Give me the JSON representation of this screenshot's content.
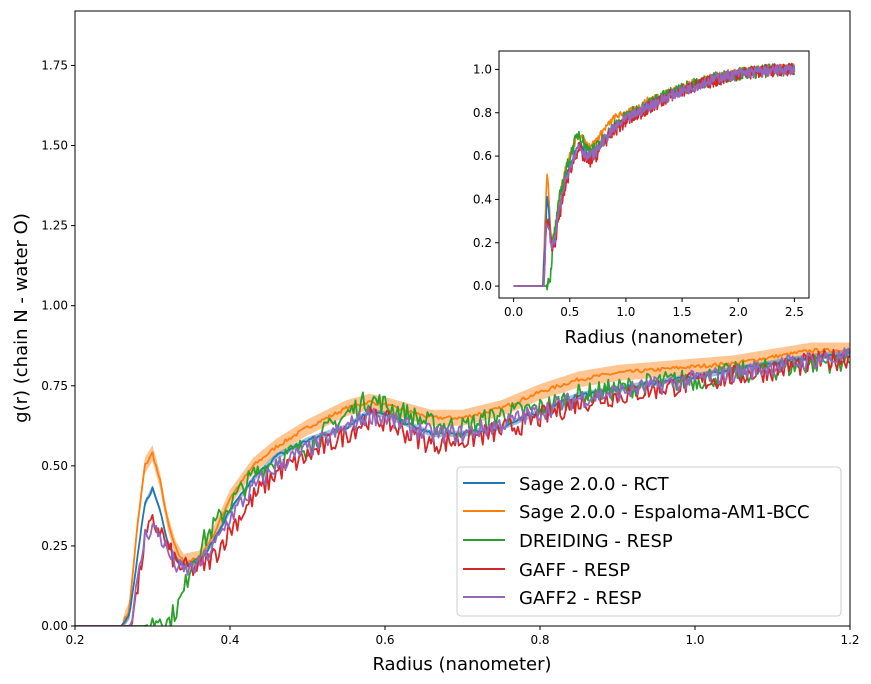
{
  "chart_data": [
    {
      "type": "line",
      "xlabel": "Radius (nanometer)",
      "ylabel": "g(r) (chain N - water O)",
      "xlim": [
        0.2,
        1.2
      ],
      "ylim": [
        0.0,
        1.92
      ],
      "xticks": [
        "0.2",
        "0.4",
        "0.6",
        "0.8",
        "1.0",
        "1.2"
      ],
      "xtick_values": [
        0.2,
        0.4,
        0.6,
        0.8,
        1.0,
        1.2
      ],
      "yticks": [
        "0.00",
        "0.25",
        "0.50",
        "0.75",
        "1.00",
        "1.25",
        "1.50",
        "1.75"
      ],
      "ytick_values": [
        0,
        0.25,
        0.5,
        0.75,
        1.0,
        1.25,
        1.5,
        1.75
      ],
      "grid": false,
      "legend_position": "lower-right",
      "series": [
        {
          "name": "Sage 2.0.0 - RCT",
          "color": "#1f77b4",
          "band": 0.01,
          "x": [
            0.2,
            0.26,
            0.27,
            0.28,
            0.29,
            0.3,
            0.31,
            0.32,
            0.33,
            0.34,
            0.36,
            0.38,
            0.4,
            0.43,
            0.46,
            0.5,
            0.55,
            0.58,
            0.6,
            0.63,
            0.66,
            0.7,
            0.75,
            0.8,
            0.85,
            0.9,
            0.95,
            1.0,
            1.05,
            1.1,
            1.15,
            1.2
          ],
          "y": [
            0.0,
            0.0,
            0.03,
            0.2,
            0.38,
            0.43,
            0.36,
            0.26,
            0.21,
            0.19,
            0.2,
            0.27,
            0.36,
            0.46,
            0.53,
            0.58,
            0.62,
            0.67,
            0.66,
            0.63,
            0.6,
            0.6,
            0.62,
            0.67,
            0.72,
            0.74,
            0.76,
            0.78,
            0.8,
            0.82,
            0.84,
            0.85
          ]
        },
        {
          "name": "Sage 2.0.0 - Espaloma-AM1-BCC",
          "color": "#ff7f0e",
          "band": 0.025,
          "x": [
            0.2,
            0.26,
            0.27,
            0.28,
            0.29,
            0.3,
            0.31,
            0.32,
            0.33,
            0.34,
            0.36,
            0.38,
            0.4,
            0.43,
            0.46,
            0.5,
            0.55,
            0.58,
            0.6,
            0.63,
            0.66,
            0.7,
            0.75,
            0.8,
            0.85,
            0.9,
            0.95,
            1.0,
            1.05,
            1.1,
            1.15,
            1.2
          ],
          "y": [
            0.0,
            0.0,
            0.05,
            0.3,
            0.5,
            0.54,
            0.45,
            0.32,
            0.24,
            0.2,
            0.21,
            0.29,
            0.4,
            0.5,
            0.56,
            0.62,
            0.68,
            0.7,
            0.69,
            0.67,
            0.65,
            0.65,
            0.68,
            0.73,
            0.77,
            0.79,
            0.8,
            0.81,
            0.82,
            0.84,
            0.86,
            0.86
          ]
        },
        {
          "name": "DREIDING - RESP",
          "color": "#2ca02c",
          "band": 0,
          "x": [
            0.2,
            0.29,
            0.3,
            0.31,
            0.32,
            0.33,
            0.34,
            0.35,
            0.37,
            0.4,
            0.43,
            0.46,
            0.5,
            0.55,
            0.58,
            0.6,
            0.63,
            0.66,
            0.7,
            0.75,
            0.8,
            0.85,
            0.9,
            0.95,
            1.0,
            1.05,
            1.1,
            1.15,
            1.2
          ],
          "y": [
            0.0,
            0.0,
            0.01,
            0.03,
            0.01,
            0.05,
            0.1,
            0.2,
            0.28,
            0.38,
            0.47,
            0.52,
            0.56,
            0.66,
            0.71,
            0.69,
            0.66,
            0.63,
            0.62,
            0.66,
            0.68,
            0.72,
            0.74,
            0.76,
            0.77,
            0.79,
            0.8,
            0.82,
            0.83
          ]
        },
        {
          "name": "GAFF - RESP",
          "color": "#d62728",
          "band": 0,
          "x": [
            0.2,
            0.27,
            0.28,
            0.29,
            0.3,
            0.31,
            0.32,
            0.33,
            0.34,
            0.36,
            0.38,
            0.4,
            0.43,
            0.46,
            0.5,
            0.55,
            0.58,
            0.6,
            0.63,
            0.66,
            0.7,
            0.75,
            0.8,
            0.85,
            0.9,
            0.95,
            1.0,
            1.05,
            1.1,
            1.15,
            1.2
          ],
          "y": [
            0.0,
            0.0,
            0.1,
            0.27,
            0.32,
            0.3,
            0.24,
            0.2,
            0.18,
            0.18,
            0.22,
            0.3,
            0.4,
            0.48,
            0.53,
            0.6,
            0.65,
            0.64,
            0.6,
            0.57,
            0.58,
            0.61,
            0.65,
            0.7,
            0.72,
            0.74,
            0.76,
            0.78,
            0.8,
            0.82,
            0.84
          ]
        },
        {
          "name": "GAFF2 - RESP",
          "color": "#9467bd",
          "band": 0,
          "x": [
            0.2,
            0.27,
            0.28,
            0.29,
            0.3,
            0.31,
            0.32,
            0.33,
            0.34,
            0.36,
            0.38,
            0.4,
            0.43,
            0.46,
            0.5,
            0.55,
            0.58,
            0.6,
            0.63,
            0.66,
            0.7,
            0.75,
            0.8,
            0.85,
            0.9,
            0.95,
            1.0,
            1.05,
            1.1,
            1.15,
            1.2
          ],
          "y": [
            0.0,
            0.0,
            0.12,
            0.28,
            0.31,
            0.28,
            0.23,
            0.19,
            0.17,
            0.19,
            0.25,
            0.34,
            0.43,
            0.5,
            0.55,
            0.62,
            0.66,
            0.65,
            0.62,
            0.6,
            0.6,
            0.63,
            0.67,
            0.71,
            0.73,
            0.75,
            0.77,
            0.79,
            0.81,
            0.83,
            0.84
          ]
        }
      ]
    },
    {
      "type": "line",
      "xlabel": "Radius (nanometer)",
      "ylabel": "",
      "xlim": [
        -0.13,
        2.63
      ],
      "ylim": [
        -0.055,
        1.085
      ],
      "xticks": [
        "0.0",
        "0.5",
        "1.0",
        "1.5",
        "2.0",
        "2.5"
      ],
      "xtick_values": [
        0,
        0.5,
        1.0,
        1.5,
        2.0,
        2.5
      ],
      "yticks": [
        "0.0",
        "0.2",
        "0.4",
        "0.6",
        "0.8",
        "1.0"
      ],
      "ytick_values": [
        0,
        0.2,
        0.4,
        0.6,
        0.8,
        1.0
      ],
      "grid": false,
      "series": [
        {
          "name": "Sage 2.0.0 - RCT",
          "color": "#1f77b4",
          "x": [
            0.0,
            0.26,
            0.28,
            0.3,
            0.33,
            0.36,
            0.4,
            0.46,
            0.52,
            0.58,
            0.62,
            0.66,
            0.72,
            0.8,
            0.9,
            1.0,
            1.1,
            1.2,
            1.4,
            1.6,
            1.8,
            2.0,
            2.2,
            2.4,
            2.5
          ],
          "y": [
            0.0,
            0.0,
            0.2,
            0.43,
            0.22,
            0.19,
            0.34,
            0.5,
            0.58,
            0.66,
            0.63,
            0.6,
            0.61,
            0.67,
            0.73,
            0.77,
            0.8,
            0.84,
            0.89,
            0.93,
            0.96,
            0.98,
            0.99,
            1.0,
            1.0
          ]
        },
        {
          "name": "Sage 2.0.0 - Espaloma-AM1-BCC",
          "color": "#ff7f0e",
          "x": [
            0.0,
            0.26,
            0.28,
            0.3,
            0.33,
            0.36,
            0.4,
            0.46,
            0.52,
            0.58,
            0.62,
            0.66,
            0.72,
            0.8,
            0.9,
            1.0,
            1.1,
            1.2,
            1.4,
            1.6,
            1.8,
            2.0,
            2.2,
            2.4,
            2.5
          ],
          "y": [
            0.0,
            0.0,
            0.3,
            0.54,
            0.24,
            0.2,
            0.38,
            0.55,
            0.63,
            0.7,
            0.68,
            0.65,
            0.66,
            0.72,
            0.78,
            0.8,
            0.82,
            0.86,
            0.9,
            0.94,
            0.97,
            0.99,
            1.0,
            1.01,
            1.01
          ]
        },
        {
          "name": "DREIDING - RESP",
          "color": "#2ca02c",
          "x": [
            0.0,
            0.29,
            0.31,
            0.33,
            0.35,
            0.38,
            0.42,
            0.46,
            0.52,
            0.58,
            0.62,
            0.66,
            0.72,
            0.8,
            0.9,
            1.0,
            1.1,
            1.2,
            1.4,
            1.6,
            1.8,
            2.0,
            2.2,
            2.4,
            2.5
          ],
          "y": [
            0.0,
            0.0,
            0.03,
            0.05,
            0.2,
            0.3,
            0.44,
            0.52,
            0.63,
            0.71,
            0.67,
            0.63,
            0.63,
            0.68,
            0.74,
            0.78,
            0.81,
            0.84,
            0.89,
            0.93,
            0.96,
            0.98,
            0.99,
            1.0,
            1.0
          ]
        },
        {
          "name": "GAFF - RESP",
          "color": "#d62728",
          "x": [
            0.0,
            0.27,
            0.29,
            0.31,
            0.33,
            0.36,
            0.4,
            0.46,
            0.52,
            0.58,
            0.62,
            0.66,
            0.72,
            0.8,
            0.9,
            1.0,
            1.1,
            1.2,
            1.4,
            1.6,
            1.8,
            2.0,
            2.2,
            2.4,
            2.5
          ],
          "y": [
            0.0,
            0.0,
            0.27,
            0.3,
            0.2,
            0.18,
            0.3,
            0.46,
            0.56,
            0.64,
            0.6,
            0.57,
            0.59,
            0.66,
            0.72,
            0.76,
            0.79,
            0.82,
            0.88,
            0.92,
            0.95,
            0.98,
            0.99,
            1.0,
            1.0
          ]
        },
        {
          "name": "GAFF2 - RESP",
          "color": "#9467bd",
          "x": [
            0.0,
            0.27,
            0.29,
            0.31,
            0.33,
            0.36,
            0.4,
            0.46,
            0.52,
            0.58,
            0.62,
            0.66,
            0.72,
            0.8,
            0.9,
            1.0,
            1.1,
            1.2,
            1.4,
            1.6,
            1.8,
            2.0,
            2.2,
            2.4,
            2.5
          ],
          "y": [
            0.0,
            0.0,
            0.28,
            0.29,
            0.19,
            0.19,
            0.33,
            0.49,
            0.58,
            0.65,
            0.62,
            0.6,
            0.61,
            0.67,
            0.73,
            0.77,
            0.8,
            0.83,
            0.88,
            0.92,
            0.96,
            0.98,
            0.99,
            1.0,
            1.0
          ]
        }
      ]
    }
  ]
}
